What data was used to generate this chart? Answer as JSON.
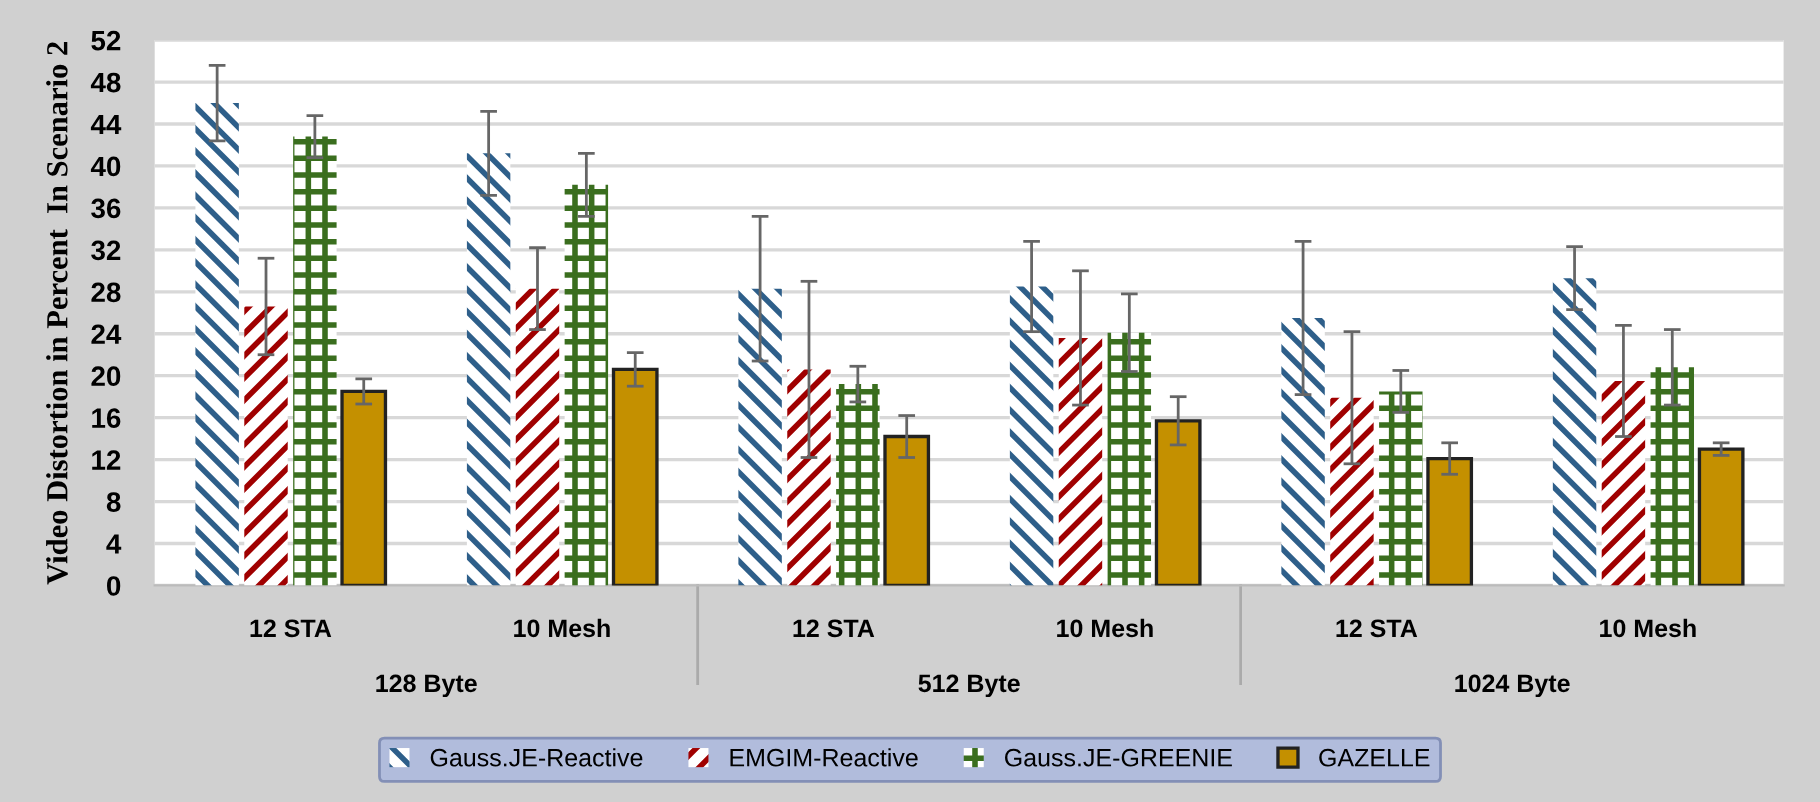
{
  "chart_data": {
    "type": "bar",
    "ylabel": "Video Distortion in Percent  In Scenario 2",
    "categories": [
      "12 STA",
      "10 Mesh",
      "12 STA",
      "10 Mesh",
      "12 STA",
      "10 Mesh"
    ],
    "annotations": [
      "128 Byte",
      "512 Byte",
      "1024 Byte"
    ],
    "series": [
      {
        "name": "Gauss.JE-Reactive",
        "color": "#2e5f8a",
        "values": [
          46.0,
          41.2,
          28.3,
          28.5,
          25.5,
          29.3
        ],
        "errors": [
          3.6,
          4.0,
          6.9,
          4.3,
          7.3,
          3.0
        ]
      },
      {
        "name": "EMGIM-Reactive",
        "color": "#a00000",
        "values": [
          26.6,
          28.3,
          20.6,
          23.6,
          17.9,
          19.5
        ],
        "errors": [
          4.6,
          3.9,
          8.4,
          6.4,
          6.3,
          5.3
        ]
      },
      {
        "name": "Gauss.JE-GREENIE",
        "color": "#3a6e1e",
        "values": [
          42.8,
          38.2,
          19.2,
          24.1,
          18.5,
          20.8
        ],
        "errors": [
          2.0,
          3.0,
          1.7,
          3.7,
          2.0,
          3.6
        ]
      },
      {
        "name": "GAZELLE",
        "color": "#c49000",
        "values": [
          18.5,
          20.6,
          14.2,
          15.7,
          12.1,
          13.0
        ],
        "errors": [
          1.2,
          1.6,
          2.0,
          2.3,
          1.5,
          0.6
        ]
      }
    ],
    "ylim": [
      0,
      52
    ],
    "yticks": [
      0,
      4,
      8,
      12,
      16,
      20,
      24,
      28,
      32,
      36,
      40,
      44,
      48,
      52
    ],
    "grid": "y",
    "legend": "bottom"
  }
}
